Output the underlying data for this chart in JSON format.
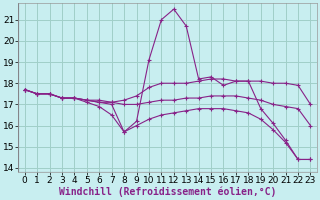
{
  "xlabel": "Windchill (Refroidissement éolien,°C)",
  "xlim": [
    -0.5,
    23.5
  ],
  "ylim": [
    13.8,
    21.8
  ],
  "yticks": [
    14,
    15,
    16,
    17,
    18,
    19,
    20,
    21
  ],
  "xticks": [
    0,
    1,
    2,
    3,
    4,
    5,
    6,
    7,
    8,
    9,
    10,
    11,
    12,
    13,
    14,
    15,
    16,
    17,
    18,
    19,
    20,
    21,
    22,
    23
  ],
  "bg_color": "#c8eef0",
  "grid_color": "#a0cfc8",
  "line_color": "#882288",
  "lines": [
    {
      "x": [
        0,
        1,
        2,
        3,
        4,
        5,
        6,
        7,
        8,
        9,
        10,
        11,
        12,
        13,
        14,
        15,
        16,
        17,
        18,
        19,
        20,
        21,
        22,
        23
      ],
      "y": [
        17.7,
        17.5,
        17.5,
        17.3,
        17.3,
        17.2,
        17.1,
        17.0,
        15.7,
        16.2,
        19.1,
        21.0,
        21.5,
        20.7,
        18.2,
        18.3,
        17.9,
        18.1,
        18.1,
        16.8,
        16.1,
        15.3,
        14.4,
        14.4
      ]
    },
    {
      "x": [
        0,
        1,
        2,
        3,
        4,
        5,
        6,
        7,
        8,
        9,
        10,
        11,
        12,
        13,
        14,
        15,
        16,
        17,
        18,
        19,
        20,
        21,
        22,
        23
      ],
      "y": [
        17.7,
        17.5,
        17.5,
        17.3,
        17.3,
        17.2,
        17.2,
        17.1,
        17.2,
        17.4,
        17.8,
        18.0,
        18.0,
        18.0,
        18.1,
        18.2,
        18.2,
        18.1,
        18.1,
        18.1,
        18.0,
        18.0,
        17.9,
        17.0
      ]
    },
    {
      "x": [
        0,
        1,
        2,
        3,
        4,
        5,
        6,
        7,
        8,
        9,
        10,
        11,
        12,
        13,
        14,
        15,
        16,
        17,
        18,
        19,
        20,
        21,
        22,
        23
      ],
      "y": [
        17.7,
        17.5,
        17.5,
        17.3,
        17.3,
        17.2,
        17.1,
        17.1,
        17.0,
        17.0,
        17.1,
        17.2,
        17.2,
        17.3,
        17.3,
        17.4,
        17.4,
        17.4,
        17.3,
        17.2,
        17.0,
        16.9,
        16.8,
        16.0
      ]
    },
    {
      "x": [
        0,
        1,
        2,
        3,
        4,
        5,
        6,
        7,
        8,
        9,
        10,
        11,
        12,
        13,
        14,
        15,
        16,
        17,
        18,
        19,
        20,
        21,
        22,
        23
      ],
      "y": [
        17.7,
        17.5,
        17.5,
        17.3,
        17.3,
        17.1,
        16.9,
        16.5,
        15.7,
        16.0,
        16.3,
        16.5,
        16.6,
        16.7,
        16.8,
        16.8,
        16.8,
        16.7,
        16.6,
        16.3,
        15.8,
        15.2,
        14.4,
        14.4
      ]
    }
  ],
  "font_size_xlabel": 7,
  "font_size_ticks": 6.5
}
